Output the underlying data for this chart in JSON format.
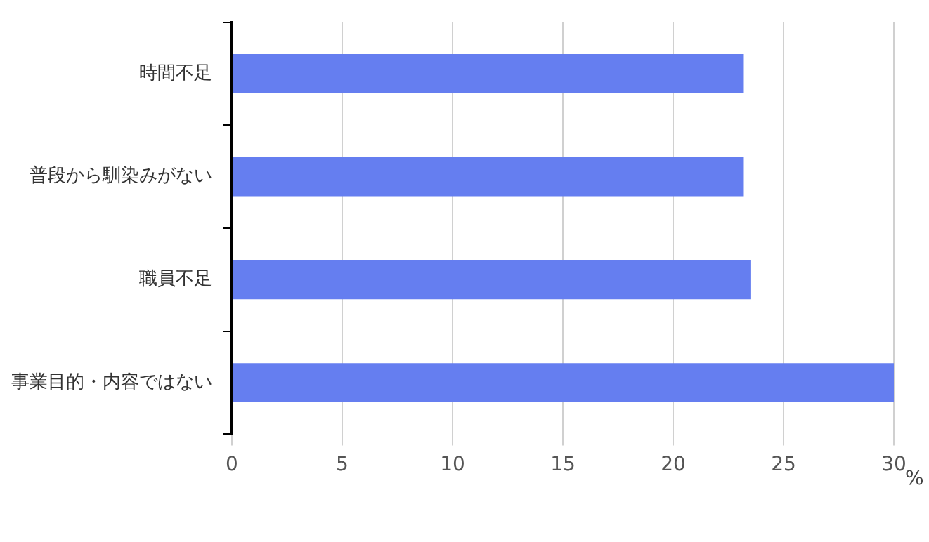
{
  "chart_data": {
    "type": "bar",
    "orientation": "horizontal",
    "xlabel": "%",
    "categories": [
      "時間不足",
      "普段から馴染みがない",
      "職員不足",
      "事業目的・内容ではない"
    ],
    "values": [
      23.2,
      23.2,
      23.5,
      30.0
    ],
    "color": "#657ef0",
    "xlim": [
      0,
      30
    ],
    "xticks": [
      0,
      5,
      10,
      15,
      20,
      25,
      30
    ],
    "grid": "x",
    "legend": false
  }
}
